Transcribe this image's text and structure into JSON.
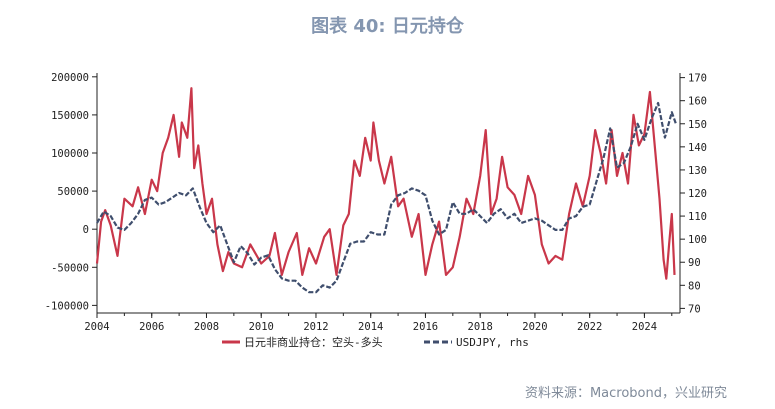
{
  "title": "图表 40: 日元持仓",
  "source": "资料来源：Macrobond，兴业研究",
  "chart_data": {
    "type": "line",
    "x_ticks": [
      "2004",
      "2006",
      "2008",
      "2010",
      "2012",
      "2014",
      "2016",
      "2018",
      "2020",
      "2022",
      "2024"
    ],
    "y_left_ticks": [
      "200000",
      "150000",
      "100000",
      "50000",
      "0",
      "-50000",
      "-100000"
    ],
    "y_right_ticks": [
      "170",
      "160",
      "150",
      "140",
      "130",
      "120",
      "110",
      "100",
      "90",
      "80",
      "70"
    ],
    "ylim_left": [
      -110000,
      205000
    ],
    "ylim_right": [
      68,
      172
    ],
    "xlim": [
      2004.0,
      2025.3
    ],
    "grid": false,
    "legend_position": "bottom",
    "series": [
      {
        "name": "日元非商业持仓：空头-多头",
        "axis": "left",
        "color": "#c9374a",
        "x": [
          2004.0,
          2004.15,
          2004.3,
          2004.5,
          2004.75,
          2005.0,
          2005.3,
          2005.5,
          2005.75,
          2006.0,
          2006.2,
          2006.4,
          2006.6,
          2006.8,
          2007.0,
          2007.1,
          2007.3,
          2007.45,
          2007.55,
          2007.7,
          2007.85,
          2008.0,
          2008.2,
          2008.4,
          2008.6,
          2008.8,
          2009.0,
          2009.3,
          2009.6,
          2010.0,
          2010.3,
          2010.5,
          2010.75,
          2011.0,
          2011.3,
          2011.5,
          2011.75,
          2012.0,
          2012.3,
          2012.5,
          2012.75,
          2013.0,
          2013.2,
          2013.4,
          2013.6,
          2013.8,
          2014.0,
          2014.1,
          2014.3,
          2014.5,
          2014.75,
          2015.0,
          2015.2,
          2015.5,
          2015.75,
          2016.0,
          2016.25,
          2016.5,
          2016.75,
          2017.0,
          2017.25,
          2017.5,
          2017.75,
          2018.0,
          2018.2,
          2018.4,
          2018.6,
          2018.8,
          2019.0,
          2019.25,
          2019.5,
          2019.75,
          2020.0,
          2020.25,
          2020.5,
          2020.75,
          2021.0,
          2021.25,
          2021.5,
          2021.75,
          2022.0,
          2022.2,
          2022.4,
          2022.6,
          2022.8,
          2023.0,
          2023.2,
          2023.4,
          2023.6,
          2023.8,
          2024.0,
          2024.2,
          2024.4,
          2024.55,
          2024.7,
          2024.8,
          2024.9,
          2025.0,
          2025.1
        ],
        "y": [
          -45000,
          10000,
          25000,
          5000,
          -35000,
          40000,
          30000,
          55000,
          20000,
          65000,
          50000,
          100000,
          120000,
          150000,
          95000,
          140000,
          120000,
          185000,
          80000,
          110000,
          60000,
          20000,
          40000,
          -20000,
          -55000,
          -30000,
          -45000,
          -50000,
          -20000,
          -45000,
          -35000,
          -5000,
          -60000,
          -30000,
          -5000,
          -60000,
          -25000,
          -45000,
          -10000,
          0,
          -60000,
          5000,
          20000,
          90000,
          70000,
          120000,
          90000,
          140000,
          90000,
          60000,
          95000,
          30000,
          40000,
          -10000,
          20000,
          -60000,
          -20000,
          10000,
          -60000,
          -50000,
          -10000,
          40000,
          20000,
          70000,
          130000,
          20000,
          40000,
          95000,
          55000,
          45000,
          20000,
          70000,
          45000,
          -20000,
          -45000,
          -35000,
          -40000,
          20000,
          60000,
          30000,
          70000,
          130000,
          100000,
          60000,
          130000,
          70000,
          100000,
          60000,
          150000,
          110000,
          125000,
          180000,
          100000,
          40000,
          -40000,
          -65000,
          -20000,
          20000,
          -60000
        ]
      },
      {
        "name": "USDJPY, rhs",
        "axis": "right",
        "color": "#3f4e6d",
        "dashed": true,
        "x": [
          2004.0,
          2004.25,
          2004.5,
          2004.75,
          2005.0,
          2005.25,
          2005.5,
          2005.75,
          2006.0,
          2006.25,
          2006.5,
          2006.75,
          2007.0,
          2007.25,
          2007.5,
          2007.75,
          2008.0,
          2008.25,
          2008.5,
          2008.75,
          2009.0,
          2009.25,
          2009.5,
          2009.75,
          2010.0,
          2010.25,
          2010.5,
          2010.75,
          2011.0,
          2011.25,
          2011.5,
          2011.75,
          2012.0,
          2012.25,
          2012.5,
          2012.75,
          2013.0,
          2013.25,
          2013.5,
          2013.75,
          2014.0,
          2014.25,
          2014.5,
          2014.75,
          2015.0,
          2015.25,
          2015.5,
          2015.75,
          2016.0,
          2016.25,
          2016.5,
          2016.75,
          2017.0,
          2017.25,
          2017.5,
          2017.75,
          2018.0,
          2018.25,
          2018.5,
          2018.75,
          2019.0,
          2019.25,
          2019.5,
          2019.75,
          2020.0,
          2020.25,
          2020.5,
          2020.75,
          2021.0,
          2021.25,
          2021.5,
          2021.75,
          2022.0,
          2022.25,
          2022.5,
          2022.75,
          2023.0,
          2023.25,
          2023.5,
          2023.75,
          2024.0,
          2024.25,
          2024.5,
          2024.75,
          2025.0,
          2025.15
        ],
        "y": [
          107,
          112,
          110,
          105,
          104,
          107,
          111,
          117,
          118,
          115,
          116,
          118,
          120,
          119,
          122,
          114,
          107,
          103,
          106,
          98,
          90,
          97,
          94,
          89,
          92,
          93,
          87,
          83,
          82,
          82,
          79,
          77,
          77,
          80,
          79,
          82,
          90,
          98,
          99,
          99,
          103,
          102,
          102,
          115,
          119,
          120,
          122,
          121,
          119,
          108,
          102,
          104,
          116,
          111,
          111,
          113,
          110,
          107,
          111,
          113,
          109,
          111,
          107,
          108,
          109,
          108,
          106,
          104,
          104,
          109,
          110,
          114,
          115,
          125,
          135,
          148,
          131,
          133,
          140,
          150,
          143,
          152,
          159,
          144,
          155,
          150
        ]
      }
    ]
  },
  "legend": {
    "series1_label": "日元非商业持仓：空头-多头",
    "series2_label": "USDJPY, rhs"
  }
}
